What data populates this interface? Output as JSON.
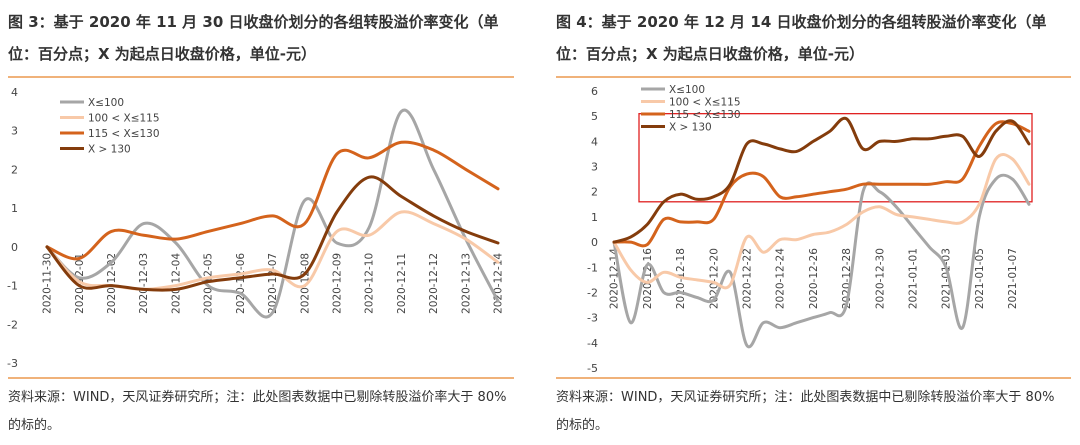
{
  "figure3": {
    "title": "图 3：基于 2020 年 11 月 30 日收盘价划分的各组转股溢价率变化（单位：百分点；X 为起点日收盘价格，单位-元）",
    "source": "资料来源：WIND，天风证券研究所；注：此处图表数据中已剔除转股溢价率大于 80%的标的。"
  },
  "figure4": {
    "title": "图 4：基于 2020 年 12 月 14 日收盘价划分的各组转股溢价率变化（单位：百分点；X 为起点日收盘价格，单位-元）",
    "source": "资料来源：WIND，天风证券研究所；注：此处图表数据中已剔除转股溢价率大于 80%的标的。"
  },
  "colors": {
    "s1": "#a6a6a6",
    "s2": "#f8c9a8",
    "s3": "#d4631c",
    "s4": "#843c0c",
    "highlight": "#e02020",
    "rule": "#f0b27a"
  },
  "chart_data": [
    {
      "type": "line",
      "categories": [
        "2020-11-30",
        "2020-12-01",
        "2020-12-02",
        "2020-12-03",
        "2020-12-04",
        "2020-12-05",
        "2020-12-06",
        "2020-12-07",
        "2020-12-08",
        "2020-12-09",
        "2020-12-10",
        "2020-12-11",
        "2020-12-12",
        "2020-12-13",
        "2020-12-14"
      ],
      "ylim": [
        -3,
        4
      ],
      "yticks": [
        "-3",
        "-2",
        "-1",
        "0",
        "1",
        "2",
        "3",
        "4"
      ],
      "series": [
        {
          "name": "X≤100",
          "values": [
            0,
            -0.8,
            -0.4,
            0.6,
            0.1,
            -1.0,
            -1.2,
            -1.7,
            1.2,
            0.1,
            0.5,
            3.5,
            2.0,
            0.2,
            -1.4
          ]
        },
        {
          "name": "100 < X≤115",
          "values": [
            0,
            -0.9,
            -1.0,
            -1.1,
            -1.0,
            -0.8,
            -0.7,
            -0.6,
            -1.0,
            0.4,
            0.3,
            0.9,
            0.6,
            0.2,
            -0.4
          ]
        },
        {
          "name": "115 < X≤130",
          "values": [
            0,
            -0.3,
            0.4,
            0.3,
            0.2,
            0.4,
            0.6,
            0.8,
            0.6,
            2.4,
            2.3,
            2.7,
            2.5,
            2.0,
            1.5
          ]
        },
        {
          "name": "X > 130",
          "values": [
            0,
            -1.0,
            -1.0,
            -1.1,
            -1.1,
            -0.9,
            -0.8,
            -0.7,
            -0.7,
            0.9,
            1.8,
            1.3,
            0.8,
            0.4,
            0.1
          ]
        }
      ]
    },
    {
      "type": "line",
      "categories": [
        "2020-12-14",
        "2020-12-15",
        "2020-12-16",
        "2020-12-17",
        "2020-12-18",
        "2020-12-19",
        "2020-12-20",
        "2020-12-21",
        "2020-12-22",
        "2020-12-23",
        "2020-12-24",
        "2020-12-25",
        "2020-12-26",
        "2020-12-27",
        "2020-12-28",
        "2020-12-29",
        "2020-12-30",
        "2020-12-31",
        "2021-01-01",
        "2021-01-02",
        "2021-01-03",
        "2021-01-04",
        "2021-01-05",
        "2021-01-06",
        "2021-01-07",
        "2021-01-08"
      ],
      "xtick_labels": [
        "2020-12-14",
        "2020-12-16",
        "2020-12-18",
        "2020-12-20",
        "2020-12-22",
        "2020-12-24",
        "2020-12-26",
        "2020-12-28",
        "2020-12-30",
        "2021-01-01",
        "2021-01-03",
        "2021-01-05",
        "2021-01-07"
      ],
      "ylim": [
        -5,
        6
      ],
      "yticks": [
        "-5",
        "-4",
        "-3",
        "-2",
        "-1",
        "0",
        "1",
        "2",
        "3",
        "4",
        "5",
        "6"
      ],
      "highlight_box": {
        "x_from": "2020-12-14",
        "x_to": "2021-01-08",
        "y_from": 1.6,
        "y_to": 5.1
      },
      "series": [
        {
          "name": "X≤100",
          "values": [
            0,
            -3.2,
            -0.9,
            -2.0,
            -2.0,
            -2.2,
            -2.3,
            -1.2,
            -4.1,
            -3.2,
            -3.4,
            -3.2,
            -3.0,
            -2.8,
            -2.5,
            2.0,
            2.0,
            1.4,
            0.6,
            -0.2,
            -1.0,
            -3.4,
            1.0,
            2.5,
            2.5,
            1.5
          ]
        },
        {
          "name": "100 < X≤115",
          "values": [
            0,
            -1.1,
            -1.6,
            -1.2,
            -1.4,
            -1.5,
            -1.6,
            -1.7,
            0.2,
            -0.4,
            0.1,
            0.1,
            0.3,
            0.4,
            0.7,
            1.2,
            1.4,
            1.1,
            1.0,
            0.9,
            0.8,
            0.8,
            1.5,
            3.3,
            3.3,
            2.3
          ]
        },
        {
          "name": "115 < X≤130",
          "values": [
            0,
            0.0,
            -0.1,
            0.9,
            0.8,
            0.8,
            0.9,
            2.2,
            2.7,
            2.6,
            1.8,
            1.8,
            1.9,
            2.0,
            2.1,
            2.3,
            2.3,
            2.3,
            2.3,
            2.3,
            2.4,
            2.5,
            3.8,
            4.7,
            4.7,
            4.4
          ]
        },
        {
          "name": "X > 130",
          "values": [
            0,
            0.2,
            0.7,
            1.6,
            1.9,
            1.7,
            1.8,
            2.3,
            3.9,
            3.9,
            3.7,
            3.6,
            4.0,
            4.4,
            4.9,
            3.7,
            4.0,
            4.0,
            4.1,
            4.1,
            4.2,
            4.2,
            3.4,
            4.4,
            4.8,
            3.9
          ]
        }
      ]
    }
  ]
}
